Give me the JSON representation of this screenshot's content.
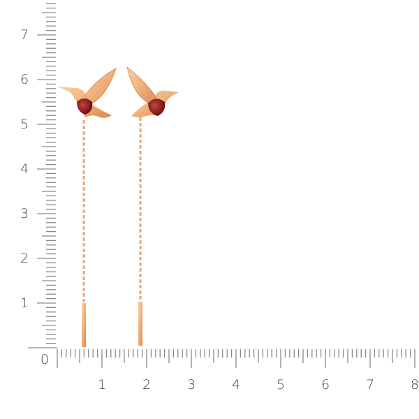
{
  "ruler": {
    "origin_label": "0",
    "x_labels": [
      "1",
      "2",
      "3",
      "4",
      "5",
      "6",
      "7",
      "8"
    ],
    "y_labels": [
      "1",
      "2",
      "3",
      "4",
      "5",
      "6",
      "7"
    ],
    "tick_color": "#8a8a8a",
    "label_color": "#444444"
  },
  "product": {
    "metal_color": "#f0b47a",
    "stone_color": "#8e1a1a",
    "items": [
      "hummingbird-earring-left",
      "hummingbird-earring-right"
    ]
  }
}
